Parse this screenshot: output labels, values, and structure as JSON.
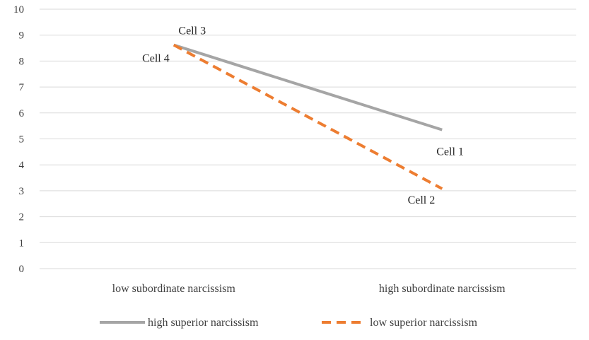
{
  "chart_data": {
    "type": "line",
    "categories": [
      "low subordinate narcissism",
      "high subordinate narcissism"
    ],
    "series": [
      {
        "name": "high superior narcissism",
        "values": [
          8.62,
          5.35
        ],
        "color": "#a5a5a5",
        "style": "solid"
      },
      {
        "name": "low superior narcissism",
        "values": [
          8.62,
          3.08
        ],
        "color": "#ed7d31",
        "style": "dashed"
      }
    ],
    "annotations": [
      {
        "text": "Cell 3",
        "series": 0,
        "point": 0
      },
      {
        "text": "Cell 4",
        "series": 1,
        "point": 0
      },
      {
        "text": "Cell 1",
        "series": 0,
        "point": 1
      },
      {
        "text": "Cell 2",
        "series": 1,
        "point": 1
      }
    ],
    "ylim": [
      0,
      10
    ],
    "yticks": [
      "0",
      "1",
      "2",
      "3",
      "4",
      "5",
      "6",
      "7",
      "8",
      "9",
      "10"
    ],
    "grid": true,
    "legend": "bottom",
    "gridline_color": "#d9d9d9"
  }
}
